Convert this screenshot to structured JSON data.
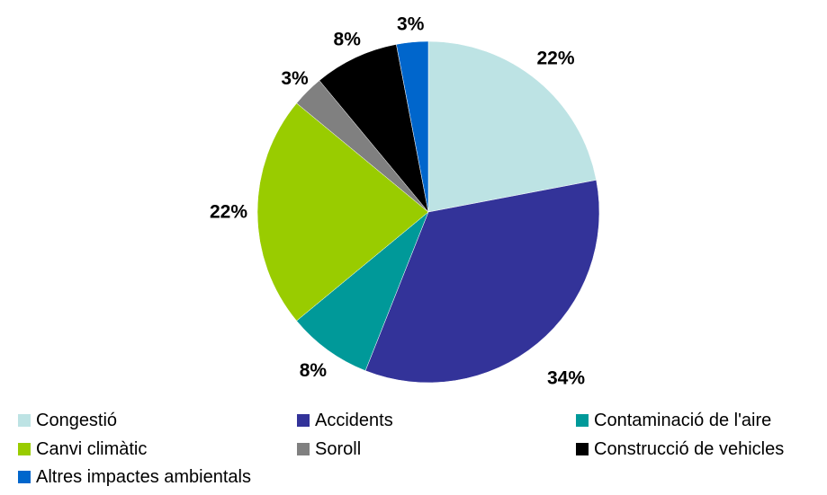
{
  "chart_data": {
    "type": "pie",
    "title": "",
    "slices": [
      {
        "name": "Congestió",
        "value": 22,
        "label": "22%",
        "color": "#bde3e4"
      },
      {
        "name": "Accidents",
        "value": 34,
        "label": "34%",
        "color": "#333399"
      },
      {
        "name": "Contaminació de l'aire",
        "value": 8,
        "label": "8%",
        "color": "#009999"
      },
      {
        "name": "Canvi climàtic",
        "value": 22,
        "label": "22%",
        "color": "#99cc00"
      },
      {
        "name": "Soroll",
        "value": 3,
        "label": "3%",
        "color": "#808080"
      },
      {
        "name": "Construcció de vehicles",
        "value": 8,
        "label": "8%",
        "color": "#000000"
      },
      {
        "name": "Altres impactes ambientals",
        "value": 3,
        "label": "3%",
        "color": "#0066cc"
      }
    ],
    "legend_position": "bottom"
  }
}
